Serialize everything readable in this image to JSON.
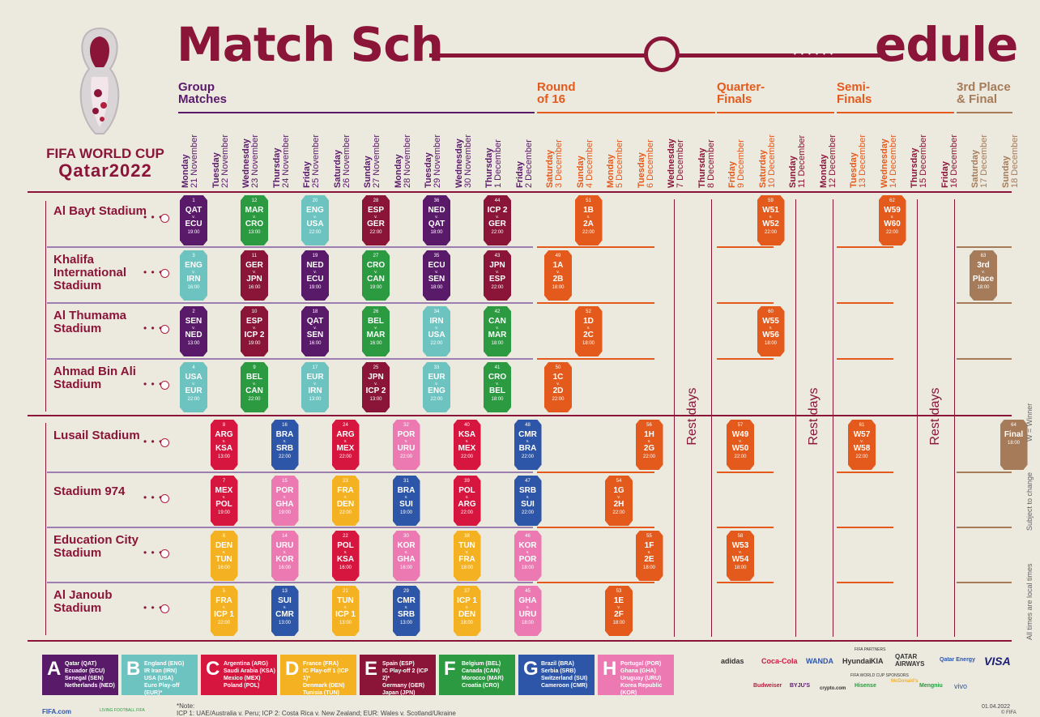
{
  "title": {
    "left": "Match Sch",
    "right": "edule"
  },
  "brand": {
    "line1": "FIFA WORLD CUP",
    "line2": "Qatar2022"
  },
  "stages": [
    {
      "label1": "Group",
      "label2": "Matches",
      "color": "#5a1a6a"
    },
    {
      "label1": "Round",
      "label2": "of 16",
      "color": "#e35a1c"
    },
    {
      "label1": "Quarter-",
      "label2": "Finals",
      "color": "#e35a1c"
    },
    {
      "label1": "Semi-",
      "label2": "Finals",
      "color": "#e35a1c"
    },
    {
      "label1": "3rd Place",
      "label2": "& Final",
      "color": "#a57b59"
    }
  ],
  "days": [
    {
      "dow": "Monday",
      "date": "21 November",
      "color": "#5a1a6a"
    },
    {
      "dow": "Tuesday",
      "date": "22 November",
      "color": "#5a1a6a"
    },
    {
      "dow": "Wednesday",
      "date": "23 November",
      "color": "#5a1a6a"
    },
    {
      "dow": "Thursday",
      "date": "24 November",
      "color": "#5a1a6a"
    },
    {
      "dow": "Friday",
      "date": "25 November",
      "color": "#5a1a6a"
    },
    {
      "dow": "Saturday",
      "date": "26 November",
      "color": "#5a1a6a"
    },
    {
      "dow": "Sunday",
      "date": "27 November",
      "color": "#5a1a6a"
    },
    {
      "dow": "Monday",
      "date": "28 November",
      "color": "#5a1a6a"
    },
    {
      "dow": "Tuesday",
      "date": "29 November",
      "color": "#5a1a6a"
    },
    {
      "dow": "Wednesday",
      "date": "30 November",
      "color": "#5a1a6a"
    },
    {
      "dow": "Thursday",
      "date": "1 December",
      "color": "#5a1a6a"
    },
    {
      "dow": "Friday",
      "date": "2 December",
      "color": "#5a1a6a"
    },
    {
      "dow": "Saturday",
      "date": "3 December",
      "color": "#e35a1c"
    },
    {
      "dow": "Sunday",
      "date": "4 December",
      "color": "#e35a1c"
    },
    {
      "dow": "Monday",
      "date": "5 December",
      "color": "#e35a1c"
    },
    {
      "dow": "Tuesday",
      "date": "6 December",
      "color": "#e35a1c"
    },
    {
      "dow": "Wednesday",
      "date": "7 December",
      "color": "#8a1538"
    },
    {
      "dow": "Thursday",
      "date": "8 December",
      "color": "#8a1538"
    },
    {
      "dow": "Friday",
      "date": "9 December",
      "color": "#e35a1c"
    },
    {
      "dow": "Saturday",
      "date": "10 December",
      "color": "#e35a1c"
    },
    {
      "dow": "Sunday",
      "date": "11 December",
      "color": "#8a1538"
    },
    {
      "dow": "Monday",
      "date": "12 December",
      "color": "#8a1538"
    },
    {
      "dow": "Tuesday",
      "date": "13 December",
      "color": "#e35a1c"
    },
    {
      "dow": "Wednesday",
      "date": "14 December",
      "color": "#e35a1c"
    },
    {
      "dow": "Thursday",
      "date": "15 December",
      "color": "#8a1538"
    },
    {
      "dow": "Friday",
      "date": "16 December",
      "color": "#8a1538"
    },
    {
      "dow": "Saturday",
      "date": "17 December",
      "color": "#a57b59"
    },
    {
      "dow": "Sunday",
      "date": "18 December",
      "color": "#a57b59"
    }
  ],
  "stadiums": [
    "Al Bayt Stadium",
    "Khalifa International Stadium",
    "Al Thumama Stadium",
    "Ahmad Bin Ali Stadium",
    "Lusail Stadium",
    "Stadium 974",
    "Education City Stadium",
    "Al Janoub Stadium"
  ],
  "rest_label": "Rest days",
  "colors": {
    "A": "#5a1a6a",
    "B": "#6cc3bf",
    "C": "#d7163f",
    "D": "#f4b223",
    "E": "#8a1538",
    "F": "#2b9a41",
    "G": "#2e56a8",
    "H": "#ec79b2",
    "K": "#e35a1c",
    "P": "#a57b59"
  },
  "matches": [
    {
      "stadium": 0,
      "day": 0,
      "num": "1",
      "t1": "QAT",
      "t2": "ECU",
      "time": "19:00",
      "c": "A"
    },
    {
      "stadium": 0,
      "day": 2,
      "num": "12",
      "t1": "MAR",
      "t2": "CRO",
      "time": "13:00",
      "c": "F"
    },
    {
      "stadium": 0,
      "day": 4,
      "num": "20",
      "t1": "ENG",
      "t2": "USA",
      "time": "22:00",
      "c": "B"
    },
    {
      "stadium": 0,
      "day": 6,
      "num": "28",
      "t1": "ESP",
      "t2": "GER",
      "time": "22:00",
      "c": "E"
    },
    {
      "stadium": 0,
      "day": 8,
      "num": "36",
      "t1": "NED",
      "t2": "QAT",
      "time": "18:00",
      "c": "A"
    },
    {
      "stadium": 0,
      "day": 10,
      "num": "44",
      "t1": "ICP 2",
      "t2": "GER",
      "time": "22:00",
      "c": "E"
    },
    {
      "stadium": 0,
      "day": 13,
      "num": "51",
      "t1": "1B",
      "t2": "2A",
      "time": "22:00",
      "c": "K"
    },
    {
      "stadium": 0,
      "day": 19,
      "num": "59",
      "t1": "W51",
      "t2": "W52",
      "time": "22:00",
      "c": "K"
    },
    {
      "stadium": 0,
      "day": 23,
      "num": "62",
      "t1": "W59",
      "t2": "W60",
      "time": "22:00",
      "c": "K"
    },
    {
      "stadium": 1,
      "day": 0,
      "num": "3",
      "t1": "ENG",
      "t2": "IRN",
      "time": "16:00",
      "c": "B"
    },
    {
      "stadium": 1,
      "day": 2,
      "num": "11",
      "t1": "GER",
      "t2": "JPN",
      "time": "16:00",
      "c": "E"
    },
    {
      "stadium": 1,
      "day": 4,
      "num": "19",
      "t1": "NED",
      "t2": "ECU",
      "time": "19:00",
      "c": "A"
    },
    {
      "stadium": 1,
      "day": 6,
      "num": "27",
      "t1": "CRO",
      "t2": "CAN",
      "time": "19:00",
      "c": "F"
    },
    {
      "stadium": 1,
      "day": 8,
      "num": "35",
      "t1": "ECU",
      "t2": "SEN",
      "time": "18:00",
      "c": "A"
    },
    {
      "stadium": 1,
      "day": 10,
      "num": "43",
      "t1": "JPN",
      "t2": "ESP",
      "time": "22:00",
      "c": "E"
    },
    {
      "stadium": 1,
      "day": 12,
      "num": "49",
      "t1": "1A",
      "t2": "2B",
      "time": "18:00",
      "c": "K"
    },
    {
      "stadium": 1,
      "day": 26,
      "num": "63",
      "t1": "3rd",
      "t2": "Place",
      "time": "18:00",
      "c": "P"
    },
    {
      "stadium": 2,
      "day": 0,
      "num": "2",
      "t1": "SEN",
      "t2": "NED",
      "time": "13:00",
      "c": "A"
    },
    {
      "stadium": 2,
      "day": 2,
      "num": "10",
      "t1": "ESP",
      "t2": "ICP 2",
      "time": "19:00",
      "c": "E"
    },
    {
      "stadium": 2,
      "day": 4,
      "num": "18",
      "t1": "QAT",
      "t2": "SEN",
      "time": "16:00",
      "c": "A"
    },
    {
      "stadium": 2,
      "day": 6,
      "num": "26",
      "t1": "BEL",
      "t2": "MAR",
      "time": "16:00",
      "c": "F"
    },
    {
      "stadium": 2,
      "day": 8,
      "num": "34",
      "t1": "IRN",
      "t2": "USA",
      "time": "22:00",
      "c": "B"
    },
    {
      "stadium": 2,
      "day": 10,
      "num": "42",
      "t1": "CAN",
      "t2": "MAR",
      "time": "18:00",
      "c": "F"
    },
    {
      "stadium": 2,
      "day": 13,
      "num": "52",
      "t1": "1D",
      "t2": "2C",
      "time": "18:00",
      "c": "K"
    },
    {
      "stadium": 2,
      "day": 19,
      "num": "60",
      "t1": "W55",
      "t2": "W56",
      "time": "18:00",
      "c": "K"
    },
    {
      "stadium": 3,
      "day": 0,
      "num": "4",
      "t1": "USA",
      "t2": "EUR",
      "time": "22:00",
      "c": "B"
    },
    {
      "stadium": 3,
      "day": 2,
      "num": "9",
      "t1": "BEL",
      "t2": "CAN",
      "time": "22:00",
      "c": "F"
    },
    {
      "stadium": 3,
      "day": 4,
      "num": "17",
      "t1": "EUR",
      "t2": "IRN",
      "time": "13:00",
      "c": "B"
    },
    {
      "stadium": 3,
      "day": 6,
      "num": "25",
      "t1": "JPN",
      "t2": "ICP 2",
      "time": "13:00",
      "c": "E"
    },
    {
      "stadium": 3,
      "day": 8,
      "num": "33",
      "t1": "EUR",
      "t2": "ENG",
      "time": "22:00",
      "c": "B"
    },
    {
      "stadium": 3,
      "day": 10,
      "num": "41",
      "t1": "CRO",
      "t2": "BEL",
      "time": "18:00",
      "c": "F"
    },
    {
      "stadium": 3,
      "day": 12,
      "num": "50",
      "t1": "1C",
      "t2": "2D",
      "time": "22:00",
      "c": "K"
    },
    {
      "stadium": 4,
      "day": 1,
      "num": "8",
      "t1": "ARG",
      "t2": "KSA",
      "time": "13:00",
      "c": "C"
    },
    {
      "stadium": 4,
      "day": 3,
      "num": "16",
      "t1": "BRA",
      "t2": "SRB",
      "time": "22:00",
      "c": "G"
    },
    {
      "stadium": 4,
      "day": 5,
      "num": "24",
      "t1": "ARG",
      "t2": "MEX",
      "time": "22:00",
      "c": "C"
    },
    {
      "stadium": 4,
      "day": 7,
      "num": "32",
      "t1": "POR",
      "t2": "URU",
      "time": "22:00",
      "c": "H"
    },
    {
      "stadium": 4,
      "day": 9,
      "num": "40",
      "t1": "KSA",
      "t2": "MEX",
      "time": "22:00",
      "c": "C"
    },
    {
      "stadium": 4,
      "day": 11,
      "num": "48",
      "t1": "CMR",
      "t2": "BRA",
      "time": "22:00",
      "c": "G"
    },
    {
      "stadium": 4,
      "day": 15,
      "num": "56",
      "t1": "1H",
      "t2": "2G",
      "time": "22:00",
      "c": "K"
    },
    {
      "stadium": 4,
      "day": 18,
      "num": "57",
      "t1": "W49",
      "t2": "W50",
      "time": "22:00",
      "c": "K"
    },
    {
      "stadium": 4,
      "day": 22,
      "num": "61",
      "t1": "W57",
      "t2": "W58",
      "time": "22:00",
      "c": "K"
    },
    {
      "stadium": 4,
      "day": 27,
      "num": "64",
      "t1": "Final",
      "t2": "",
      "time": "18:00",
      "c": "P"
    },
    {
      "stadium": 5,
      "day": 1,
      "num": "7",
      "t1": "MEX",
      "t2": "POL",
      "time": "19:00",
      "c": "C"
    },
    {
      "stadium": 5,
      "day": 3,
      "num": "15",
      "t1": "POR",
      "t2": "GHA",
      "time": "19:00",
      "c": "H"
    },
    {
      "stadium": 5,
      "day": 5,
      "num": "23",
      "t1": "FRA",
      "t2": "DEN",
      "time": "22:00",
      "c": "D"
    },
    {
      "stadium": 5,
      "day": 7,
      "num": "31",
      "t1": "BRA",
      "t2": "SUI",
      "time": "19:00",
      "c": "G"
    },
    {
      "stadium": 5,
      "day": 9,
      "num": "39",
      "t1": "POL",
      "t2": "ARG",
      "time": "22:00",
      "c": "C"
    },
    {
      "stadium": 5,
      "day": 11,
      "num": "47",
      "t1": "SRB",
      "t2": "SUI",
      "time": "22:00",
      "c": "G"
    },
    {
      "stadium": 5,
      "day": 14,
      "num": "54",
      "t1": "1G",
      "t2": "2H",
      "time": "22:00",
      "c": "K"
    },
    {
      "stadium": 6,
      "day": 1,
      "num": "6",
      "t1": "DEN",
      "t2": "TUN",
      "time": "16:00",
      "c": "D"
    },
    {
      "stadium": 6,
      "day": 3,
      "num": "14",
      "t1": "URU",
      "t2": "KOR",
      "time": "16:00",
      "c": "H"
    },
    {
      "stadium": 6,
      "day": 5,
      "num": "22",
      "t1": "POL",
      "t2": "KSA",
      "time": "16:00",
      "c": "C"
    },
    {
      "stadium": 6,
      "day": 7,
      "num": "30",
      "t1": "KOR",
      "t2": "GHA",
      "time": "16:00",
      "c": "H"
    },
    {
      "stadium": 6,
      "day": 9,
      "num": "38",
      "t1": "TUN",
      "t2": "FRA",
      "time": "18:00",
      "c": "D"
    },
    {
      "stadium": 6,
      "day": 11,
      "num": "46",
      "t1": "KOR",
      "t2": "POR",
      "time": "18:00",
      "c": "H"
    },
    {
      "stadium": 6,
      "day": 15,
      "num": "55",
      "t1": "1F",
      "t2": "2E",
      "time": "18:00",
      "c": "K"
    },
    {
      "stadium": 6,
      "day": 18,
      "num": "58",
      "t1": "W53",
      "t2": "W54",
      "time": "18:00",
      "c": "K"
    },
    {
      "stadium": 7,
      "day": 1,
      "num": "5",
      "t1": "FRA",
      "t2": "ICP 1",
      "time": "22:00",
      "c": "D"
    },
    {
      "stadium": 7,
      "day": 3,
      "num": "13",
      "t1": "SUI",
      "t2": "CMR",
      "time": "13:00",
      "c": "G"
    },
    {
      "stadium": 7,
      "day": 5,
      "num": "21",
      "t1": "TUN",
      "t2": "ICP 1",
      "time": "13:00",
      "c": "D"
    },
    {
      "stadium": 7,
      "day": 7,
      "num": "29",
      "t1": "CMR",
      "t2": "SRB",
      "time": "13:00",
      "c": "G"
    },
    {
      "stadium": 7,
      "day": 9,
      "num": "37",
      "t1": "ICP 1",
      "t2": "DEN",
      "time": "18:00",
      "c": "D"
    },
    {
      "stadium": 7,
      "day": 11,
      "num": "45",
      "t1": "GHA",
      "t2": "URU",
      "time": "18:00",
      "c": "H"
    },
    {
      "stadium": 7,
      "day": 14,
      "num": "53",
      "t1": "1E",
      "t2": "2F",
      "time": "18:00",
      "c": "K"
    }
  ],
  "groups": [
    {
      "letter": "A",
      "c": "A",
      "teams": [
        "Qatar (QAT)",
        "Ecuador (ECU)",
        "Senegal (SEN)",
        "Netherlands (NED)"
      ]
    },
    {
      "letter": "B",
      "c": "B",
      "teams": [
        "England (ENG)",
        "IR Iran (IRN)",
        "USA (USA)",
        "Euro Play-off (EUR)*"
      ]
    },
    {
      "letter": "C",
      "c": "C",
      "teams": [
        "Argentina (ARG)",
        "Saudi Arabia (KSA)",
        "Mexico (MEX)",
        "Poland (POL)"
      ]
    },
    {
      "letter": "D",
      "c": "D",
      "teams": [
        "France (FRA)",
        "IC Play-off 1 (ICP 1)*",
        "Denmark (DEN)",
        "Tunisia (TUN)"
      ]
    },
    {
      "letter": "E",
      "c": "E",
      "teams": [
        "Spain (ESP)",
        "IC Play-off 2 (ICP 2)*",
        "Germany (GER)",
        "Japan (JPN)"
      ]
    },
    {
      "letter": "F",
      "c": "F",
      "teams": [
        "Belgium (BEL)",
        "Canada (CAN)",
        "Morocco (MAR)",
        "Croatia (CRO)"
      ]
    },
    {
      "letter": "G",
      "c": "G",
      "teams": [
        "Brazil (BRA)",
        "Serbia (SRB)",
        "Switzerland (SUI)",
        "Cameroon (CMR)"
      ]
    },
    {
      "letter": "H",
      "c": "H",
      "teams": [
        "Portugal (POR)",
        "Ghana (GHA)",
        "Uruguay (URU)",
        "Korea Republic (KOR)"
      ]
    }
  ],
  "sponsors": {
    "partners_label": "FIFA PARTNERS",
    "partners": [
      "adidas",
      "Coca-Cola",
      "WANDA",
      "Hyundai",
      "KIA",
      "QATAR AIRWAYS",
      "Qatar Energy",
      "VISA"
    ],
    "wc_label": "FIFA WORLD CUP SPONSORS",
    "wc": [
      "Budweiser",
      "BYJU'S",
      "crypto.com",
      "Hisense",
      "McDonald's",
      "Mengniu",
      "vivo"
    ]
  },
  "footer": {
    "fifa": "FIFA.com",
    "living": "LIVING FOOTBALL FIFA",
    "note_label": "*Note:",
    "note": "ICP 1: UAE/Australia v. Peru;  ICP 2: Costa Rica v. New Zealand;  EUR: Wales v. Scotland/Ukraine",
    "date": "01.04.2022",
    "copyright": "© FIFA"
  },
  "side_notes": [
    "W = Winner",
    "Subject to change",
    "All times are local times"
  ]
}
